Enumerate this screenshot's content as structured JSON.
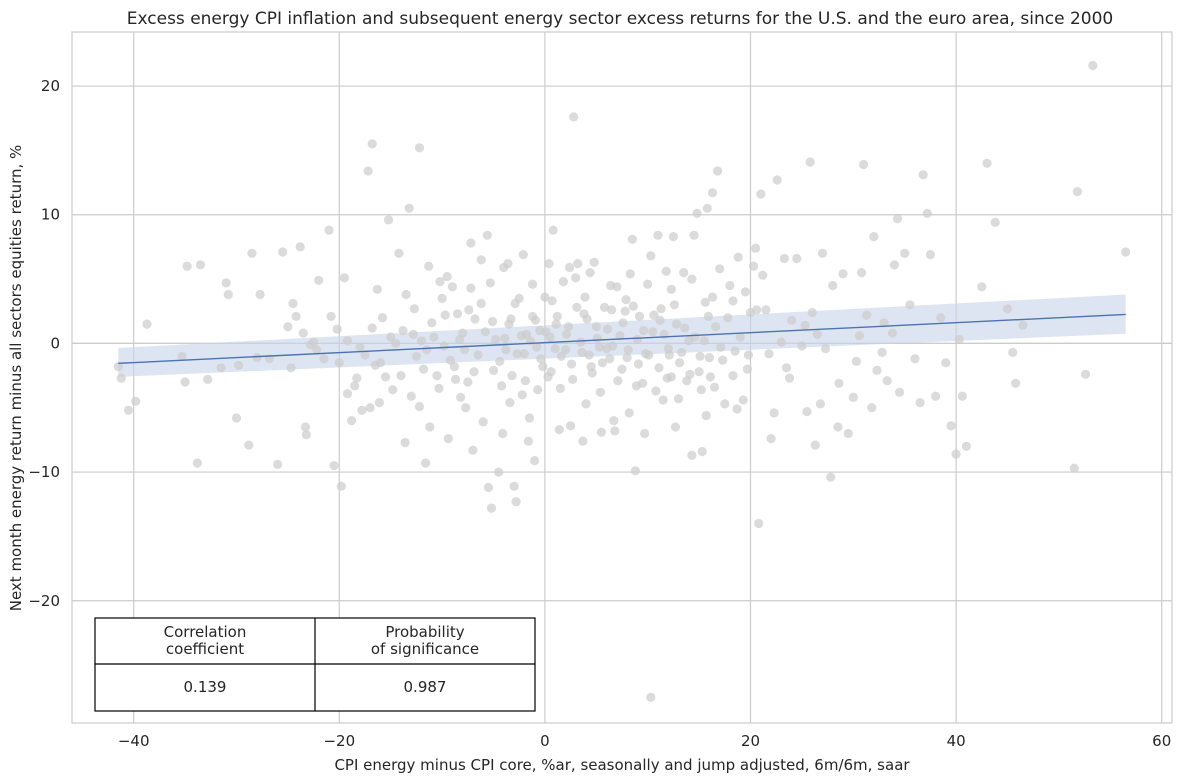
{
  "chart_data": {
    "type": "scatter",
    "title": "Excess energy CPI inflation and subsequent energy sector excess returns for the U.S. and the euro area, since 2000",
    "xlabel": "CPI energy minus CPI core, %ar, seasonally and jump adjusted, 6m/6m, saar",
    "ylabel": "Next month energy return minus all sectors equities return, %",
    "xlim": [
      -46,
      61
    ],
    "ylim": [
      -29.5,
      24.2
    ],
    "xticks": [
      -40,
      -20,
      0,
      20,
      40,
      60
    ],
    "yticks": [
      -20,
      -10,
      0,
      10,
      20
    ],
    "xtick_labels": [
      "−40",
      "−20",
      "0",
      "20",
      "40",
      "60"
    ],
    "ytick_labels": [
      "−20",
      "−10",
      "0",
      "10",
      "20"
    ],
    "grid": true,
    "point_color": "#cccccc",
    "line_color": "#4c72b0",
    "band_color": "#c8d4ea",
    "regression": {
      "x": [
        -41.5,
        56.5
      ],
      "y": [
        -1.55,
        2.25
      ],
      "ci_lower": [
        -2.6,
        0.75
      ],
      "ci_upper": [
        -0.35,
        3.8
      ]
    },
    "points": [
      [
        -41.5,
        -1.8
      ],
      [
        -41.2,
        -2.7
      ],
      [
        -40.5,
        -5.2
      ],
      [
        -39.8,
        -4.5
      ],
      [
        -38.7,
        1.5
      ],
      [
        -35.3,
        -1.0
      ],
      [
        -35,
        -3.0
      ],
      [
        -34.8,
        6.0
      ],
      [
        -33.5,
        6.1
      ],
      [
        -33.8,
        -9.3
      ],
      [
        -32.8,
        -2.8
      ],
      [
        -31.5,
        -1.9
      ],
      [
        -31,
        4.7
      ],
      [
        -30.8,
        3.8
      ],
      [
        -30,
        -5.8
      ],
      [
        -28.8,
        -7.9
      ],
      [
        -28.5,
        7.0
      ],
      [
        -28,
        -1.1
      ],
      [
        -26,
        -9.4
      ],
      [
        -25.5,
        7.1
      ],
      [
        -25,
        1.3
      ],
      [
        -24.5,
        3.1
      ],
      [
        -24.2,
        2.1
      ],
      [
        -23.8,
        7.5
      ],
      [
        -23.5,
        0.8
      ],
      [
        -23.3,
        -6.5
      ],
      [
        -23.2,
        -7.1
      ],
      [
        -22.5,
        0.1
      ],
      [
        -22.2,
        -0.5
      ],
      [
        -21.5,
        -1.2
      ],
      [
        -21,
        8.8
      ],
      [
        -20.5,
        -9.5
      ],
      [
        -20,
        -1.5
      ],
      [
        -19.8,
        -11.1
      ],
      [
        -19.5,
        5.1
      ],
      [
        -19.2,
        0.2
      ],
      [
        -18.8,
        -6.0
      ],
      [
        -18.5,
        -3.3
      ],
      [
        -18,
        -0.3
      ],
      [
        -17.5,
        -0.9
      ],
      [
        -17,
        -5.0
      ],
      [
        -16.8,
        1.2
      ],
      [
        -16.5,
        -1.7
      ],
      [
        -16,
        -1.5
      ],
      [
        -15.5,
        -2.6
      ],
      [
        -15,
        0.5
      ],
      [
        -14.5,
        0.0
      ],
      [
        -14,
        -2.5
      ],
      [
        -13.5,
        3.8
      ],
      [
        -13,
        -4.1
      ],
      [
        -12.8,
        0.7
      ],
      [
        -12.5,
        -1.0
      ],
      [
        -12.2,
        -4.9
      ],
      [
        -12,
        0.2
      ],
      [
        -11.5,
        -0.5
      ],
      [
        -11.2,
        -6.5
      ],
      [
        -11,
        1.6
      ],
      [
        -10.5,
        -2.5
      ],
      [
        -10,
        3.5
      ],
      [
        -9.8,
        -0.2
      ],
      [
        -9.5,
        5.2
      ],
      [
        -9,
        4.4
      ],
      [
        -8.8,
        -1.8
      ],
      [
        -8.5,
        2.3
      ],
      [
        -8.2,
        -4.2
      ],
      [
        -8,
        0.8
      ],
      [
        -7.5,
        -3.0
      ],
      [
        -7.2,
        4.3
      ],
      [
        -7,
        -8.3
      ],
      [
        -6.8,
        1.9
      ],
      [
        -6.5,
        -0.9
      ],
      [
        -6.2,
        3.1
      ],
      [
        -6,
        -6.1
      ],
      [
        -5.5,
        -11.2
      ],
      [
        -5.2,
        -12.8
      ],
      [
        -5,
        -2.1
      ],
      [
        -4.8,
        0.3
      ],
      [
        -4.5,
        -10.0
      ],
      [
        -4.2,
        -3.3
      ],
      [
        -4,
        5.9
      ],
      [
        -3.8,
        -0.5
      ],
      [
        -3.5,
        1.5
      ],
      [
        -3.2,
        -2.5
      ],
      [
        -3,
        -11.1
      ],
      [
        -2.8,
        -12.3
      ],
      [
        -2.5,
        3.5
      ],
      [
        -2.2,
        -4.0
      ],
      [
        -2,
        -0.8
      ],
      [
        -1.8,
        0.7
      ],
      [
        -1.5,
        -5.8
      ],
      [
        -1.2,
        2.1
      ],
      [
        -1,
        -9.1
      ],
      [
        -0.8,
        -0.3
      ],
      [
        -0.5,
        1.0
      ],
      [
        -0.2,
        -1.8
      ],
      [
        0,
        3.6
      ],
      [
        0.3,
        -2.6
      ],
      [
        0.5,
        0.5
      ],
      [
        0.8,
        8.8
      ],
      [
        1,
        -0.4
      ],
      [
        1.2,
        2.1
      ],
      [
        1.5,
        -3.5
      ],
      [
        1.8,
        4.8
      ],
      [
        2,
        -0.5
      ],
      [
        2.3,
        1.3
      ],
      [
        2.5,
        -6.4
      ],
      [
        2.8,
        17.6
      ],
      [
        3,
        5.1
      ],
      [
        3.2,
        6.2
      ],
      [
        3.5,
        0.1
      ],
      [
        3.8,
        2.3
      ],
      [
        4,
        -4.7
      ],
      [
        4.3,
        -0.9
      ],
      [
        4.5,
        -1.8
      ],
      [
        4.8,
        6.3
      ],
      [
        5,
        1.3
      ],
      [
        5.3,
        -0.3
      ],
      [
        5.5,
        -6.9
      ],
      [
        5.8,
        2.8
      ],
      [
        6,
        -0.4
      ],
      [
        6.3,
        -1.2
      ],
      [
        6.5,
        2.6
      ],
      [
        6.8,
        -6.8
      ],
      [
        7,
        4.4
      ],
      [
        7.3,
        0.6
      ],
      [
        7.5,
        -2.0
      ],
      [
        7.8,
        2.5
      ],
      [
        8,
        -1.1
      ],
      [
        8.2,
        -5.4
      ],
      [
        8.5,
        8.1
      ],
      [
        8.8,
        -9.9
      ],
      [
        9,
        0.3
      ],
      [
        9.2,
        2.1
      ],
      [
        9.5,
        -3.1
      ],
      [
        9.8,
        -0.8
      ],
      [
        10,
        4.6
      ],
      [
        10.3,
        -27.5
      ],
      [
        10.5,
        0.9
      ],
      [
        10.8,
        -3.7
      ],
      [
        11,
        8.4
      ],
      [
        11.2,
        1.8
      ],
      [
        11.5,
        -4.4
      ],
      [
        11.8,
        5.6
      ],
      [
        12,
        -0.4
      ],
      [
        12.3,
        -2.6
      ],
      [
        12.5,
        8.3
      ],
      [
        12.8,
        1.5
      ],
      [
        13,
        -4.3
      ],
      [
        13.3,
        -0.7
      ],
      [
        13.5,
        5.5
      ],
      [
        13.8,
        -2.9
      ],
      [
        14,
        0.2
      ],
      [
        14.3,
        -8.7
      ],
      [
        14.5,
        8.4
      ],
      [
        14.8,
        10.1
      ],
      [
        15,
        -2.2
      ],
      [
        15.3,
        -8.4
      ],
      [
        15.5,
        0.2
      ],
      [
        15.8,
        10.5
      ],
      [
        16,
        -1.1
      ],
      [
        16.3,
        11.7
      ],
      [
        16.5,
        -3.4
      ],
      [
        16.8,
        13.4
      ],
      [
        17,
        5.8
      ],
      [
        17.3,
        -1.3
      ],
      [
        17.5,
        -4.7
      ],
      [
        17.8,
        2.0
      ],
      [
        18,
        4.5
      ],
      [
        18.3,
        -2.5
      ],
      [
        18.5,
        -0.6
      ],
      [
        18.8,
        6.7
      ],
      [
        19,
        0.5
      ],
      [
        19.3,
        -4.4
      ],
      [
        19.5,
        4.0
      ],
      [
        19.8,
        -0.9
      ],
      [
        20,
        2.4
      ],
      [
        20.3,
        6.0
      ],
      [
        20.5,
        7.4
      ],
      [
        20.8,
        -14.0
      ],
      [
        21,
        11.6
      ],
      [
        21.2,
        5.3
      ],
      [
        21.5,
        2.6
      ],
      [
        21.8,
        -0.8
      ],
      [
        22,
        -7.4
      ],
      [
        22.3,
        -5.4
      ],
      [
        22.6,
        12.7
      ],
      [
        23,
        0.1
      ],
      [
        23.3,
        6.6
      ],
      [
        23.5,
        -1.9
      ],
      [
        24,
        1.8
      ],
      [
        24.5,
        6.6
      ],
      [
        25,
        -0.2
      ],
      [
        25.5,
        -5.3
      ],
      [
        25.8,
        14.1
      ],
      [
        26,
        2.4
      ],
      [
        26.3,
        -7.9
      ],
      [
        26.5,
        0.7
      ],
      [
        26.8,
        -4.7
      ],
      [
        27,
        7.0
      ],
      [
        27.3,
        -0.4
      ],
      [
        27.8,
        -10.4
      ],
      [
        28,
        4.5
      ],
      [
        28.5,
        -6.5
      ],
      [
        29,
        5.4
      ],
      [
        29.5,
        -7.0
      ],
      [
        30,
        -4.2
      ],
      [
        30.3,
        -1.4
      ],
      [
        30.8,
        5.5
      ],
      [
        31,
        13.9
      ],
      [
        31.3,
        2.2
      ],
      [
        31.8,
        -5.0
      ],
      [
        32,
        8.3
      ],
      [
        32.3,
        -2.1
      ],
      [
        32.8,
        -0.7
      ],
      [
        33,
        1.6
      ],
      [
        33.3,
        -2.9
      ],
      [
        33.8,
        0.8
      ],
      [
        34,
        6.1
      ],
      [
        34.3,
        9.7
      ],
      [
        34.5,
        -3.8
      ],
      [
        35,
        7.0
      ],
      [
        35.5,
        3.0
      ],
      [
        36,
        -1.2
      ],
      [
        36.5,
        -4.6
      ],
      [
        36.8,
        13.1
      ],
      [
        37.2,
        10.1
      ],
      [
        37.5,
        6.9
      ],
      [
        38,
        -4.1
      ],
      [
        38.5,
        2.0
      ],
      [
        39,
        -1.5
      ],
      [
        39.5,
        -6.4
      ],
      [
        40,
        -8.6
      ],
      [
        40.3,
        0.3
      ],
      [
        40.6,
        -4.1
      ],
      [
        41,
        -8.0
      ],
      [
        42.5,
        4.4
      ],
      [
        43,
        14.0
      ],
      [
        43.8,
        9.4
      ],
      [
        45,
        2.7
      ],
      [
        45.5,
        -0.7
      ],
      [
        45.8,
        -3.1
      ],
      [
        46.5,
        1.4
      ],
      [
        51.5,
        -9.7
      ],
      [
        51.8,
        11.8
      ],
      [
        52.6,
        -2.4
      ],
      [
        53.3,
        21.6
      ],
      [
        56.5,
        7.1
      ],
      [
        -9.2,
        -1.3
      ],
      [
        -7.8,
        -0.5
      ],
      [
        -7.4,
        2.6
      ],
      [
        -6.9,
        -2.2
      ],
      [
        -5.8,
        0.9
      ],
      [
        -5.1,
        1.7
      ],
      [
        -4.4,
        -1.4
      ],
      [
        -3.9,
        0.4
      ],
      [
        -3.3,
        1.9
      ],
      [
        -2.7,
        -0.8
      ],
      [
        -2.3,
        0.6
      ],
      [
        -1.9,
        -2.9
      ],
      [
        -1.4,
        0.2
      ],
      [
        -0.9,
        1.8
      ],
      [
        -0.4,
        -1.2
      ],
      [
        0.1,
        0.9
      ],
      [
        0.6,
        -2.2
      ],
      [
        1.1,
        1.5
      ],
      [
        1.6,
        -1.0
      ],
      [
        2.1,
        0.7
      ],
      [
        2.6,
        -1.6
      ],
      [
        3.1,
        2.8
      ],
      [
        3.6,
        -0.7
      ],
      [
        4.1,
        1.9
      ],
      [
        4.6,
        -2.3
      ],
      [
        5.1,
        0.4
      ],
      [
        5.6,
        -1.5
      ],
      [
        6.1,
        1.1
      ],
      [
        6.6,
        -0.2
      ],
      [
        7.1,
        -2.9
      ],
      [
        7.6,
        1.6
      ],
      [
        8.1,
        -0.5
      ],
      [
        8.6,
        2.9
      ],
      [
        9.1,
        -1.6
      ],
      [
        9.6,
        1.0
      ],
      [
        10.1,
        -0.9
      ],
      [
        10.6,
        2.2
      ],
      [
        11.1,
        -1.9
      ],
      [
        11.6,
        0.7
      ],
      [
        12.1,
        -0.9
      ],
      [
        12.6,
        3.0
      ],
      [
        13.1,
        -1.5
      ],
      [
        13.6,
        1.2
      ],
      [
        14.1,
        -2.4
      ],
      [
        14.6,
        0.5
      ],
      [
        15.1,
        -1.0
      ],
      [
        15.6,
        3.2
      ],
      [
        16.1,
        -2.6
      ],
      [
        16.6,
        1.3
      ],
      [
        17.1,
        -0.3
      ],
      [
        -15.8,
        2.0
      ],
      [
        -14.8,
        -3.6
      ],
      [
        -13.8,
        1.0
      ],
      [
        -12.7,
        2.7
      ],
      [
        -11.8,
        -2.0
      ],
      [
        -10.8,
        0.5
      ],
      [
        -10.3,
        -3.5
      ],
      [
        -9.7,
        2.2
      ],
      [
        -8.7,
        -2.8
      ],
      [
        -8.3,
        0.3
      ],
      [
        -16.3,
        4.2
      ],
      [
        -17.2,
        13.4
      ],
      [
        -16.8,
        15.5
      ],
      [
        -12.2,
        15.2
      ],
      [
        -13.2,
        10.5
      ],
      [
        -15.2,
        9.6
      ],
      [
        -14.2,
        7.0
      ],
      [
        -11.3,
        6.0
      ],
      [
        -10.2,
        4.8
      ],
      [
        -7.2,
        7.8
      ],
      [
        -6.2,
        6.5
      ],
      [
        -5.6,
        8.4
      ],
      [
        -3.6,
        6.2
      ],
      [
        -2.1,
        6.9
      ],
      [
        -1.2,
        4.6
      ],
      [
        0.4,
        6.2
      ],
      [
        2.4,
        5.9
      ],
      [
        4.4,
        5.5
      ],
      [
        6.4,
        4.5
      ],
      [
        8.3,
        5.4
      ],
      [
        10.3,
        6.8
      ],
      [
        12.3,
        4.2
      ],
      [
        14.3,
        5.0
      ],
      [
        16.3,
        3.6
      ],
      [
        18.3,
        3.3
      ],
      [
        -20.8,
        2.1
      ],
      [
        -18.3,
        -2.7
      ],
      [
        -22.8,
        -0.1
      ],
      [
        -26.8,
        -1.2
      ],
      [
        -29.8,
        -1.7
      ],
      [
        -13.6,
        -7.7
      ],
      [
        -11.6,
        -9.3
      ],
      [
        -9.4,
        -7.4
      ],
      [
        -7.7,
        -5.0
      ],
      [
        -4.1,
        -7.0
      ],
      [
        -1.6,
        -7.6
      ],
      [
        1.4,
        -6.7
      ],
      [
        3.7,
        -7.6
      ],
      [
        6.7,
        -6.0
      ],
      [
        9.7,
        -7.0
      ],
      [
        12.7,
        -6.5
      ],
      [
        15.7,
        -5.6
      ],
      [
        18.7,
        -5.1
      ],
      [
        -17.8,
        -5.2
      ],
      [
        -19.2,
        -3.9
      ],
      [
        -24.7,
        -1.9
      ],
      [
        -27.7,
        3.8
      ],
      [
        -22,
        4.9
      ],
      [
        -20.2,
        1.1
      ],
      [
        -16.1,
        -4.6
      ],
      [
        -3.4,
        -4.6
      ],
      [
        -0.7,
        -3.6
      ],
      [
        2.7,
        -2.8
      ],
      [
        5.4,
        -3.8
      ],
      [
        8.9,
        -3.3
      ],
      [
        11.9,
        -2.7
      ],
      [
        15.2,
        -3.6
      ],
      [
        19.7,
        -2.0
      ],
      [
        23.8,
        -2.7
      ],
      [
        28.6,
        -3.1
      ],
      [
        -5.3,
        4.7
      ],
      [
        -2.9,
        3.1
      ],
      [
        0.7,
        3.3
      ],
      [
        3.9,
        3.6
      ],
      [
        7.9,
        3.4
      ],
      [
        11.3,
        2.7
      ],
      [
        15.9,
        2.1
      ],
      [
        20.6,
        2.6
      ],
      [
        25.3,
        1.4
      ],
      [
        30.6,
        0.6
      ]
    ],
    "table": {
      "col1_header_line1": "Correlation",
      "col1_header_line2": "coefficient",
      "col2_header_line1": "Probability",
      "col2_header_line2": "of significance",
      "correlation": "0.139",
      "probability": "0.987"
    }
  }
}
